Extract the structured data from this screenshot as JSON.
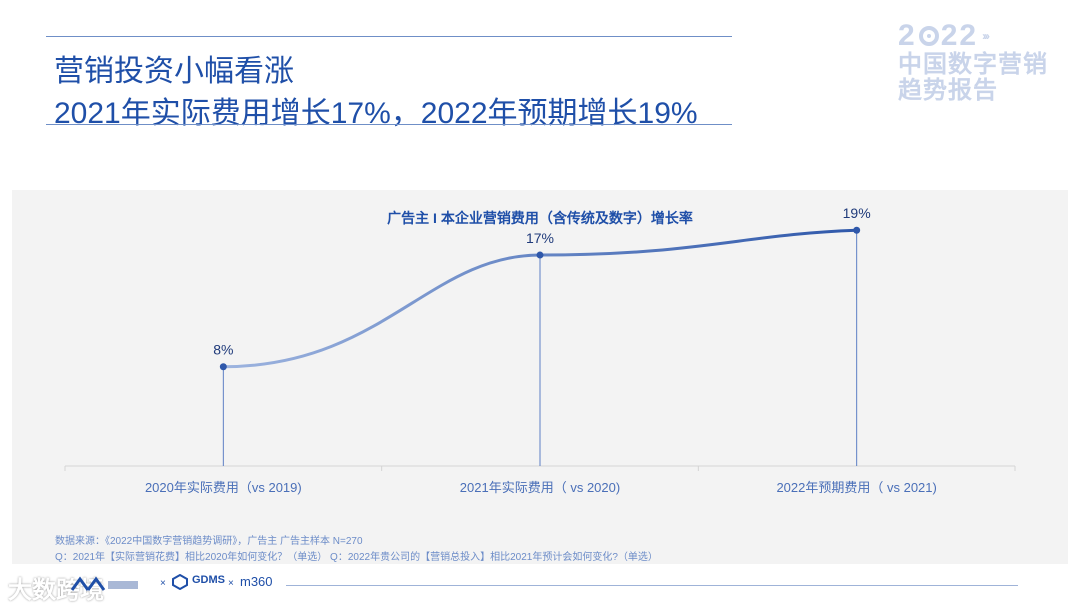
{
  "header": {
    "title_line1": "营销投资小幅看涨",
    "title_line2": "2021年实际费用增长17%，2022年预期增长19%"
  },
  "brand": {
    "year_left": "2",
    "year_right": "22",
    "line1": "中国数字营销",
    "line2": "趋势报告"
  },
  "chart_data": {
    "type": "line",
    "title": "广告主 I 本企业营销费用（含传统及数字）增长率",
    "categories": [
      "2020年实际费用（vs 2019)",
      "2021年实际费用（ vs 2020)",
      "2022年预期费用（ vs 2021)"
    ],
    "values": [
      8,
      17,
      19
    ],
    "data_labels": [
      "8%",
      "17%",
      "19%"
    ],
    "ylim": [
      0,
      22
    ],
    "grid": false
  },
  "source": {
    "line1": "数据来源：《2022中国数字营销趋势调研》，广告主 广告主样本 N=270",
    "line2": "Q：2021年【实际营销花费】相比2020年如何变化？（单选）     Q：2022年贵公司的【营销总投入】相比2021年预计会如何变化?（单选）"
  },
  "footer": {
    "logo_gdms": "GDMS",
    "logo_m360": "m360",
    "separator": "×",
    "watermark": "大数跨境"
  },
  "colors": {
    "primary": "#1f4fa8",
    "line": "#3a63b4",
    "panel": "#f3f3f3"
  }
}
